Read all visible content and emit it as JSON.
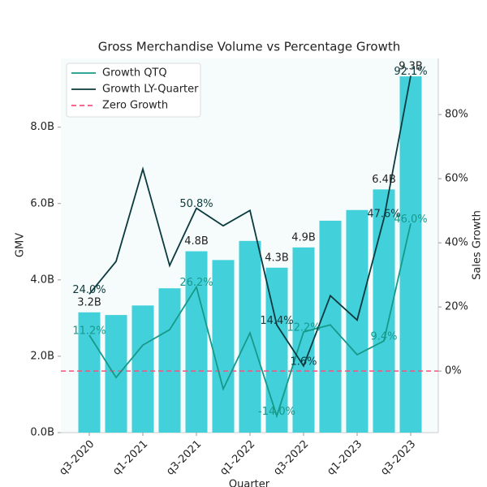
{
  "chart_data": {
    "type": "bar",
    "title": "Gross Merchandise Volume vs Percentage Growth",
    "xlabel": "Quarter",
    "ylabel": "GMV",
    "y2label": "Sales Growth",
    "categories": [
      "q3-2020",
      null,
      "q1-2021",
      null,
      "q3-2021",
      null,
      "q1-2022",
      null,
      "q3-2022",
      null,
      "q1-2023",
      null,
      "q3-2023"
    ],
    "values": [
      3.15,
      3.08,
      3.33,
      3.78,
      4.75,
      4.52,
      5.02,
      4.32,
      4.85,
      5.55,
      5.83,
      6.37,
      9.33
    ],
    "value_labels": [
      "3.2B",
      null,
      null,
      null,
      "4.8B",
      null,
      null,
      "4.3B",
      "4.9B",
      null,
      null,
      "6.4B",
      "9.3B"
    ],
    "color": "#42d0da",
    "ylim": [
      0,
      9.8
    ],
    "yticks": [
      {
        "value": 0,
        "label": "0.0B"
      },
      {
        "value": 2,
        "label": "2.0B"
      },
      {
        "value": 4,
        "label": "4.0B"
      },
      {
        "value": 6,
        "label": "6.0B"
      },
      {
        "value": 8,
        "label": "8.0B"
      }
    ],
    "y2lim": [
      -19.2,
      97.5
    ],
    "y2ticks": [
      {
        "value": 0,
        "label": "0%"
      },
      {
        "value": 20,
        "label": "20%"
      },
      {
        "value": 40,
        "label": "40%"
      },
      {
        "value": 60,
        "label": "60%"
      },
      {
        "value": 80,
        "label": "80%"
      }
    ],
    "series": [
      {
        "name": "Growth QTQ",
        "type": "line",
        "axis": "y2",
        "color": "#17998a",
        "values": [
          11.2,
          -2.0,
          8.1,
          12.9,
          26.2,
          -5.6,
          11.9,
          -14.0,
          12.2,
          14.4,
          5.1,
          9.4,
          46.0
        ],
        "value_labels": [
          "11.2%",
          null,
          null,
          null,
          "26.2%",
          null,
          null,
          "-14.0%",
          "12.2%",
          null,
          null,
          "9.4%",
          "46.0%"
        ]
      },
      {
        "name": "Growth LY-Quarter",
        "type": "line",
        "axis": "y2",
        "color": "#0b3a3e",
        "values": [
          24.0,
          34.2,
          63.0,
          32.9,
          50.8,
          45.3,
          50.1,
          14.4,
          1.6,
          23.5,
          15.9,
          47.6,
          92.1
        ],
        "value_labels": [
          "24.0%",
          null,
          null,
          null,
          "50.8%",
          null,
          null,
          "14.4%",
          "1.6%",
          null,
          null,
          "47.6%",
          "92.1%"
        ]
      }
    ],
    "hlines": [
      {
        "name": "Zero Growth",
        "value": 0,
        "axis": "y2",
        "color": "#ff4f7b",
        "dashed": true
      }
    ],
    "legend": "upper left"
  }
}
